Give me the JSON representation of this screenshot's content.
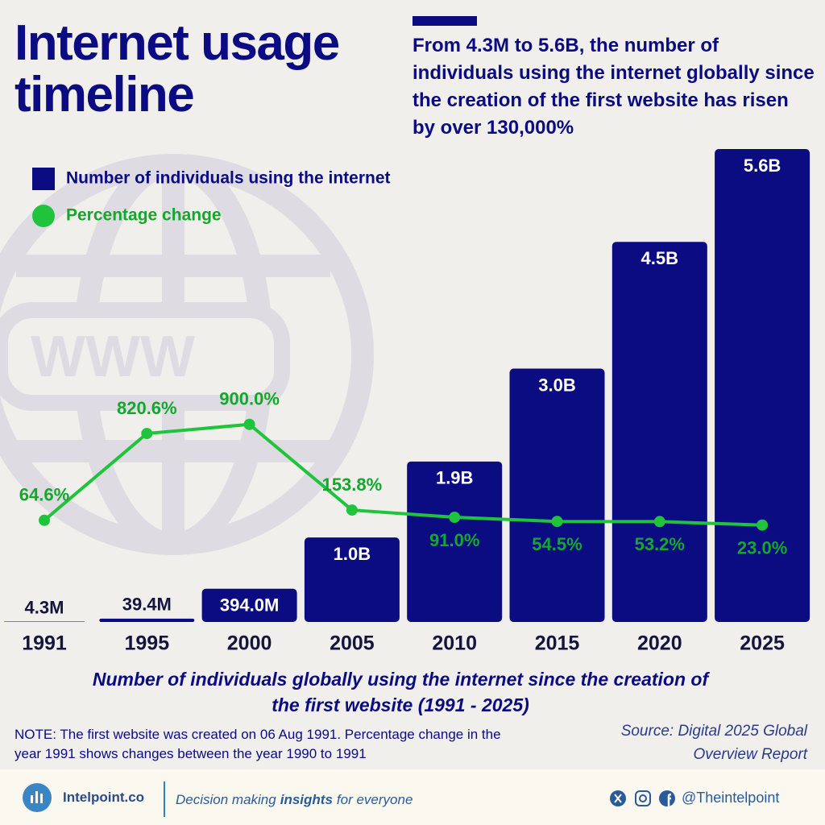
{
  "header": {
    "title": "Internet usage timeline",
    "subtitle": "From 4.3M to 5.6B, the number of individuals using the internet globally since the creation of the first website has risen by over 130,000%"
  },
  "chart_data": {
    "type": "bar",
    "watermark": "WWW",
    "categories": [
      "1991",
      "1995",
      "2000",
      "2005",
      "2010",
      "2015",
      "2020",
      "2025"
    ],
    "series": [
      {
        "name": "Number of individuals using the internet",
        "color": "#0b0b82",
        "values": [
          4300000,
          39400000,
          394000000,
          1000000000,
          1900000000,
          3000000000,
          4500000000,
          5600000000
        ],
        "value_labels": [
          "4.3M",
          "39.4M",
          "394.0M",
          "1.0B",
          "1.9B",
          "3.0B",
          "4.5B",
          "5.6B"
        ]
      },
      {
        "name": "Percentage change",
        "type": "line",
        "color": "#1fc43c",
        "values": [
          64.6,
          820.6,
          900.0,
          153.8,
          91.0,
          54.5,
          53.2,
          23.0
        ],
        "value_labels": [
          "64.6%",
          "820.6%",
          "900.0%",
          "153.8%",
          "91.0%",
          "54.5%",
          "53.2%",
          "23.0%"
        ]
      }
    ],
    "caption": "Number of individuals globally using the internet since the creation of the first website (1991 - 2025)"
  },
  "note": "NOTE: The first website was created on 06 Aug 1991. Percentage change in the year 1991 shows changes between the year 1990 to 1991",
  "source": "Source: Digital 2025 Global Overview Report",
  "footer": {
    "brand": "Intelpoint.co",
    "tagline": [
      "Decision making",
      "insights",
      "for everyone"
    ],
    "handle": "@Theintelpoint"
  }
}
